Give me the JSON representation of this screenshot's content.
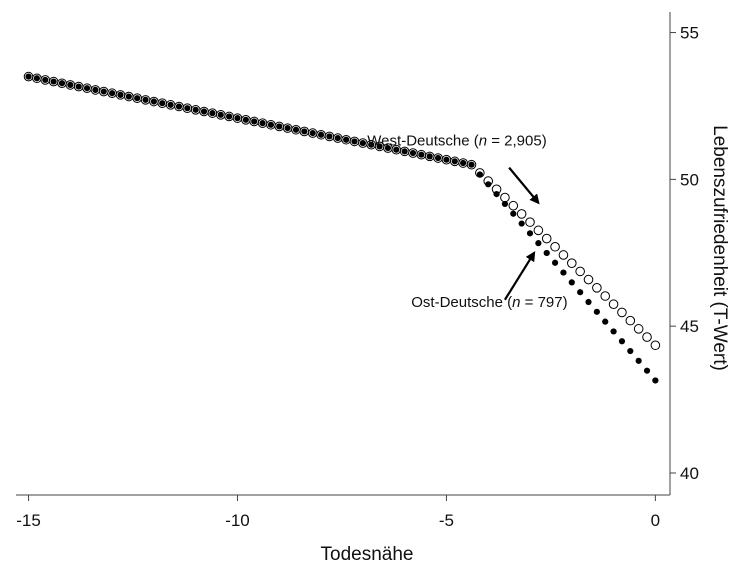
{
  "chart_data": {
    "type": "scatter",
    "xlabel": "Todesnähe",
    "ylabel": "Lebenszufriedenheit (T-Wert)",
    "xlim": [
      -15.3,
      0.35
    ],
    "ylim": [
      39.25,
      55.7
    ],
    "x_ticks": [
      -15,
      -10,
      -5,
      0
    ],
    "x_tick_labels": [
      "-15",
      "-10",
      "-5",
      "0"
    ],
    "y_ticks": [
      40,
      45,
      50,
      55
    ],
    "y_tick_labels": [
      "40",
      "45",
      "50",
      "55"
    ],
    "y_axis_position": "right",
    "grid": false,
    "legend": "none",
    "series": [
      {
        "name": "West-Deutsche (n = 2,905)",
        "marker": "hollow-circle",
        "color": "#000000",
        "segments": [
          {
            "x_start": -15.0,
            "y_start": 53.5,
            "x_end": -4.4,
            "y_end": 50.5
          },
          {
            "x_start": -4.4,
            "y_start": 50.5,
            "x_end": 0.0,
            "y_end": 44.35
          }
        ],
        "step": 0.2
      },
      {
        "name": "Ost-Deutsche (n = 797)",
        "marker": "filled-circle",
        "color": "#000000",
        "segments": [
          {
            "x_start": -15.0,
            "y_start": 53.5,
            "x_end": -4.4,
            "y_end": 50.5
          },
          {
            "x_start": -4.4,
            "y_start": 50.5,
            "x_end": 0.0,
            "y_end": 43.15
          }
        ],
        "step": 0.2
      }
    ],
    "annotations": [
      {
        "id": "west",
        "prefix": "West-Deutsche (",
        "italic": "n",
        "suffix": " = 2,905)",
        "text_x": -2.6,
        "text_y": 51.15,
        "anchor": "end",
        "arrow_from": [
          -3.5,
          50.4
        ],
        "arrow_to": [
          -2.8,
          49.2
        ]
      },
      {
        "id": "ost",
        "prefix": "Ost-Deutsche (",
        "italic": "n",
        "suffix": " = 797)",
        "text_x": -2.1,
        "text_y": 45.65,
        "anchor": "end",
        "arrow_from": [
          -3.6,
          45.9
        ],
        "arrow_to": [
          -2.9,
          47.5
        ]
      }
    ]
  }
}
